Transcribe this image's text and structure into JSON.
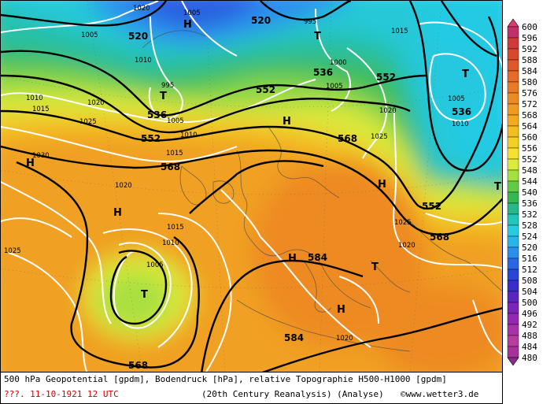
{
  "footer": {
    "line1": "500 hPa Geopotential [gpdm], Bodendruck [hPa], relative Topographie H500-H1000 [gpdm]",
    "date": "???. 11-10-1921  12 UTC",
    "source": "(20th Century Reanalysis)  (Analyse)",
    "credit": "©www.wetter3.de"
  },
  "legend": {
    "levels": [
      "600",
      "596",
      "592",
      "588",
      "584",
      "580",
      "576",
      "572",
      "568",
      "564",
      "560",
      "556",
      "552",
      "548",
      "544",
      "540",
      "536",
      "532",
      "528",
      "524",
      "520",
      "516",
      "512",
      "508",
      "504",
      "500",
      "496",
      "492",
      "488",
      "484",
      "480"
    ],
    "colors": [
      "#c0306a",
      "#d03a3a",
      "#d9482c",
      "#e0582a",
      "#e66a2a",
      "#ea7a28",
      "#ee8a24",
      "#f09a22",
      "#f2aa20",
      "#f4be20",
      "#f6d020",
      "#f8e030",
      "#dcea3a",
      "#a6e040",
      "#60cc46",
      "#34b850",
      "#26b88a",
      "#22c6b8",
      "#28cce0",
      "#2ab4ec",
      "#2a8eec",
      "#2a66e4",
      "#2a44d8",
      "#3a2ec8",
      "#5a26c0",
      "#7a24b8",
      "#9428b0",
      "#a832a8",
      "#b83ca0",
      "#a6329a",
      "#8a2a8a"
    ],
    "accent_arrow": "#e23a6a",
    "bottom_arrow": "#8a2a8a"
  },
  "map": {
    "geopotential_labels": [
      {
        "text": "520"
      },
      {
        "text": "520"
      },
      {
        "text": "536"
      },
      {
        "text": "552"
      },
      {
        "text": "552"
      },
      {
        "text": "536"
      },
      {
        "text": "552"
      },
      {
        "text": "568"
      },
      {
        "text": "568"
      },
      {
        "text": "552"
      },
      {
        "text": "568"
      },
      {
        "text": "584"
      },
      {
        "text": "584"
      },
      {
        "text": "568"
      },
      {
        "text": "536"
      }
    ],
    "pressure_labels": [
      {
        "text": "1005"
      },
      {
        "text": "1020"
      },
      {
        "text": "1005"
      },
      {
        "text": "1010"
      },
      {
        "text": "995"
      },
      {
        "text": "995"
      },
      {
        "text": "1000"
      },
      {
        "text": "1005"
      },
      {
        "text": "1015"
      },
      {
        "text": "1010"
      },
      {
        "text": "1015"
      },
      {
        "text": "1020"
      },
      {
        "text": "1025"
      },
      {
        "text": "1005"
      },
      {
        "text": "1010"
      },
      {
        "text": "1015"
      },
      {
        "text": "1030"
      },
      {
        "text": "1020"
      },
      {
        "text": "1015"
      },
      {
        "text": "1010"
      },
      {
        "text": "1005"
      },
      {
        "text": "1025"
      },
      {
        "text": "1020"
      },
      {
        "text": "1025"
      },
      {
        "text": "1020"
      },
      {
        "text": "1005"
      },
      {
        "text": "1010"
      },
      {
        "text": "1025"
      },
      {
        "text": "1020"
      }
    ],
    "centers": [
      {
        "text": "H"
      },
      {
        "text": "T"
      },
      {
        "text": "T"
      },
      {
        "text": "H"
      },
      {
        "text": "T"
      },
      {
        "text": "H"
      },
      {
        "text": "H"
      },
      {
        "text": "T"
      },
      {
        "text": "H"
      },
      {
        "text": "T"
      },
      {
        "text": "H"
      },
      {
        "text": "T"
      },
      {
        "text": "H"
      }
    ]
  }
}
